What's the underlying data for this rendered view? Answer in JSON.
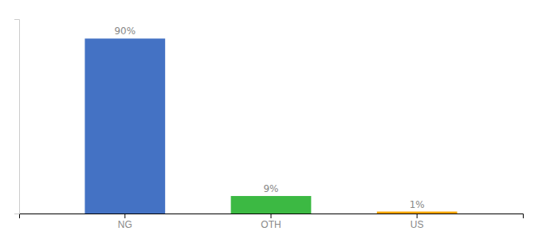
{
  "chart_data": {
    "type": "bar",
    "categories": [
      "NG",
      "OTH",
      "US"
    ],
    "values": [
      90,
      9,
      1
    ],
    "value_labels": [
      "90%",
      "9%",
      "1%"
    ],
    "colors": [
      "#4472C4",
      "#3CB943",
      "#FFA500"
    ],
    "ylim": [
      0,
      100
    ],
    "data_labels": true,
    "tick_labels": "x",
    "grid": false
  }
}
